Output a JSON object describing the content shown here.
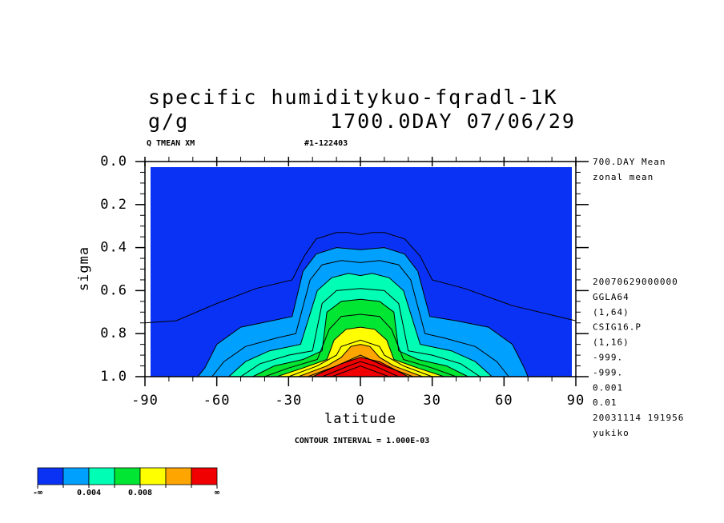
{
  "chart_data": {
    "type": "contour",
    "title": "specific humiditykuo-fqradl-1K",
    "units": "g/g",
    "time": "1700.0DAY 07/06/29",
    "header_left": "Q TMEAN XM",
    "header_right": "#1-122403",
    "xlabel": "latitude",
    "ylabel": "sigma",
    "note": "CONTOUR INTERVAL = 1.000E-03",
    "info_top": [
      "700.DAY Mean",
      "zonal mean"
    ],
    "info": [
      "20070629000000",
      "GGLA64",
      "(1,64)",
      "CSIG16.P",
      "(1,16)",
      "-999.",
      "-999.",
      "0.001",
      "0.01",
      "20031114 191956",
      "yukiko"
    ],
    "xlim": [
      -90,
      90
    ],
    "xticks": [
      -90,
      -60,
      -30,
      0,
      30,
      60,
      90
    ],
    "ylim": [
      1,
      0
    ],
    "yticks": [
      {
        "value": 0,
        "label": "0.0"
      },
      0.2,
      0.4,
      0.6,
      0.8,
      {
        "value": 1,
        "label": "1.0"
      }
    ],
    "colorbar": {
      "colors": [
        "#0a32f5",
        "#00a0ff",
        "#00ffb4",
        "#00e632",
        "#ffff00",
        "#ffa500",
        "#f00000"
      ],
      "bounds": [
        0.002,
        0.004,
        0.006,
        0.008,
        0.01,
        0.012
      ],
      "ticks": [
        0.004,
        0.008
      ],
      "low_label": "-∞",
      "high_label": "∞"
    },
    "contours": [
      {
        "value": 0.001,
        "x": [
          -90,
          -77,
          -60,
          -43.5,
          -28.5,
          -23.5,
          -18.5,
          -10,
          -5,
          0,
          5,
          10,
          18.5,
          25,
          30,
          43.5,
          63.5,
          90
        ],
        "y": [
          0.75,
          0.74,
          0.66,
          0.59,
          0.55,
          0.44,
          0.36,
          0.33,
          0.33,
          0.34,
          0.33,
          0.33,
          0.36,
          0.44,
          0.55,
          0.59,
          0.67,
          0.74
        ]
      },
      {
        "value": 0.002,
        "x": [
          -68,
          -65,
          -60,
          -50,
          -37,
          -28.5,
          -24,
          -18.5,
          -10,
          0,
          10,
          18.5,
          24,
          29,
          40,
          53.5,
          63.5,
          68.5,
          70
        ],
        "y": [
          1,
          0.96,
          0.85,
          0.77,
          0.74,
          0.72,
          0.51,
          0.43,
          0.4,
          0.41,
          0.4,
          0.43,
          0.51,
          0.72,
          0.74,
          0.77,
          0.85,
          0.96,
          1
        ]
      },
      {
        "value": 0.003,
        "x": [
          -62,
          -57,
          -48,
          -35,
          -27,
          -21,
          -16,
          -8,
          0,
          8,
          16,
          21,
          27,
          35,
          48,
          57,
          62
        ],
        "y": [
          1,
          0.93,
          0.86,
          0.82,
          0.8,
          0.55,
          0.48,
          0.46,
          0.47,
          0.46,
          0.48,
          0.55,
          0.8,
          0.82,
          0.86,
          0.93,
          1
        ]
      },
      {
        "value": 0.004,
        "x": [
          -55,
          -48,
          -38,
          -25,
          -18,
          -12,
          -5,
          0,
          5,
          12,
          18,
          25,
          38,
          48,
          55
        ],
        "y": [
          1,
          0.93,
          0.88,
          0.85,
          0.6,
          0.54,
          0.52,
          0.53,
          0.52,
          0.54,
          0.6,
          0.85,
          0.88,
          0.93,
          1
        ]
      },
      {
        "value": 0.005,
        "x": [
          -50,
          -42,
          -30,
          -20,
          -16,
          -10,
          0,
          10,
          16,
          20,
          30,
          42,
          50
        ],
        "y": [
          1,
          0.94,
          0.9,
          0.88,
          0.66,
          0.6,
          0.59,
          0.6,
          0.66,
          0.88,
          0.9,
          0.94,
          1
        ]
      },
      {
        "value": 0.006,
        "x": [
          -45,
          -36,
          -24,
          -16,
          -14,
          -8,
          0,
          8,
          14,
          16,
          24,
          36,
          45
        ],
        "y": [
          1,
          0.95,
          0.92,
          0.88,
          0.7,
          0.65,
          0.64,
          0.65,
          0.7,
          0.88,
          0.92,
          0.95,
          1
        ]
      },
      {
        "value": 0.007,
        "x": [
          -40,
          -30,
          -18,
          -13,
          -8,
          0,
          8,
          13,
          18,
          30,
          40
        ],
        "y": [
          1,
          0.96,
          0.92,
          0.78,
          0.72,
          0.71,
          0.72,
          0.78,
          0.92,
          0.96,
          1
        ]
      },
      {
        "value": 0.008,
        "x": [
          -35,
          -24,
          -14,
          -11,
          -6,
          0,
          6,
          11,
          14,
          24,
          35
        ],
        "y": [
          1,
          0.96,
          0.92,
          0.83,
          0.78,
          0.77,
          0.78,
          0.83,
          0.92,
          0.96,
          1
        ]
      },
      {
        "value": 0.009,
        "x": [
          -30,
          -18,
          -10,
          -8,
          0,
          8,
          10,
          18,
          30
        ],
        "y": [
          1,
          0.95,
          0.9,
          0.86,
          0.83,
          0.86,
          0.9,
          0.95,
          1
        ]
      },
      {
        "value": 0.01,
        "x": [
          -26,
          -14,
          -8,
          -4,
          0,
          4,
          8,
          14,
          26
        ],
        "y": [
          1,
          0.95,
          0.91,
          0.86,
          0.85,
          0.86,
          0.91,
          0.95,
          1
        ]
      },
      {
        "value": 0.011,
        "x": [
          -22,
          -10,
          0,
          10,
          22
        ],
        "y": [
          1,
          0.95,
          0.9,
          0.95,
          1
        ]
      },
      {
        "value": 0.012,
        "x": [
          -20,
          -8,
          0,
          8,
          20
        ],
        "y": [
          1,
          0.94,
          0.91,
          0.93,
          1
        ]
      },
      {
        "value": 0.013,
        "x": [
          -16,
          -5,
          0,
          6,
          16
        ],
        "y": [
          1,
          0.95,
          0.93,
          0.95,
          1
        ]
      },
      {
        "value": 0.014,
        "x": [
          -12,
          0,
          12
        ],
        "y": [
          1,
          0.95,
          1
        ]
      }
    ]
  }
}
